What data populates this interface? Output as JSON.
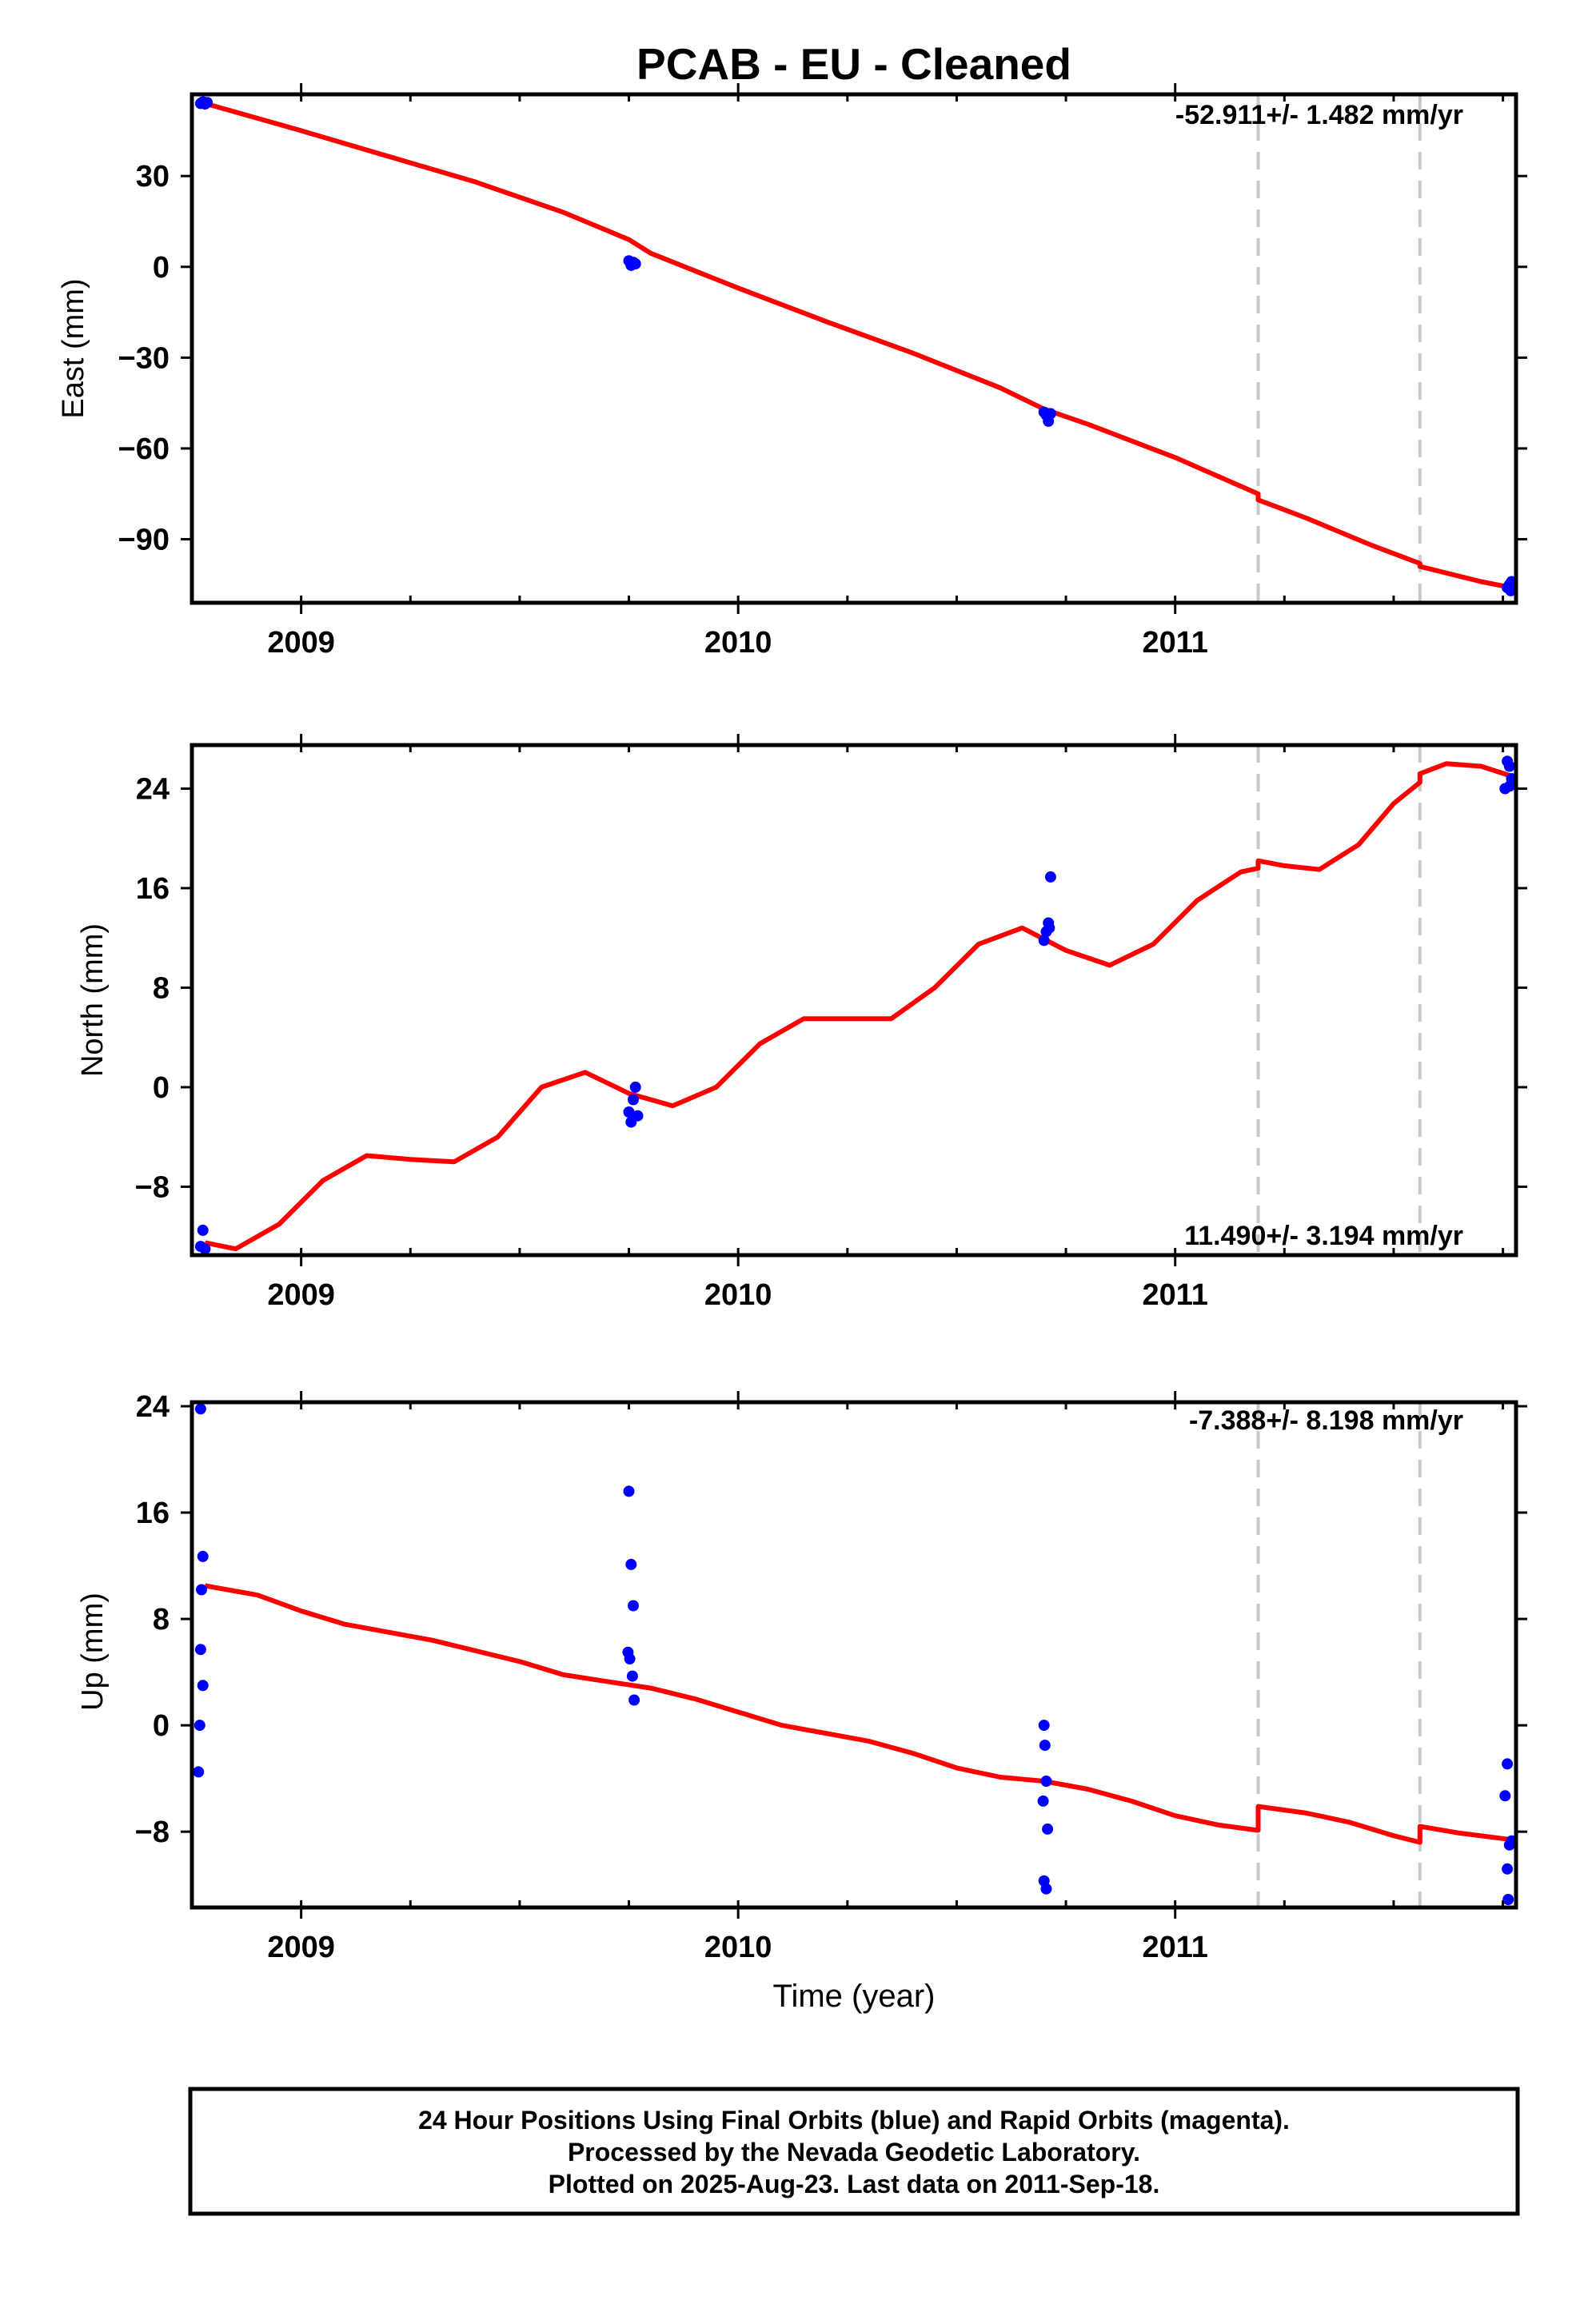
{
  "title": "PCAB  - EU - Cleaned",
  "xlabel": "Time (year)",
  "colors": {
    "final": "#0000ff",
    "model": "#ff0000",
    "offset": "#c8c8c8",
    "frame": "#000000"
  },
  "chart_data": [
    {
      "type": "scatter",
      "name": "east",
      "ylabel": "East (mm)",
      "rate_label": "-52.911+/- 1.482 mm/yr",
      "xlim": [
        2008.75,
        2011.78
      ],
      "ylim": [
        -111,
        57
      ],
      "xticks": [
        2009,
        2010,
        2011
      ],
      "yticks": [
        30,
        0,
        -30,
        -60,
        -90
      ],
      "ytick_labels": [
        "30",
        "0",
        "−30",
        "−60",
        "−90"
      ],
      "offsets": [
        2011.19,
        2011.56
      ],
      "points": [
        [
          2008.77,
          54
        ],
        [
          2008.775,
          54.5
        ],
        [
          2008.78,
          53.8
        ],
        [
          2008.785,
          54.3
        ],
        [
          2009.75,
          2
        ],
        [
          2009.755,
          0.5
        ],
        [
          2009.76,
          1.5
        ],
        [
          2009.765,
          1
        ],
        [
          2010.7,
          -48
        ],
        [
          2010.705,
          -49
        ],
        [
          2010.71,
          -51
        ],
        [
          2010.715,
          -48.5
        ],
        [
          2011.76,
          -106
        ],
        [
          2011.765,
          -105
        ],
        [
          2011.77,
          -104
        ],
        [
          2011.768,
          -107
        ]
      ],
      "model": [
        [
          2008.78,
          54
        ],
        [
          2009.0,
          45
        ],
        [
          2009.2,
          36.5
        ],
        [
          2009.4,
          28
        ],
        [
          2009.6,
          18
        ],
        [
          2009.75,
          9
        ],
        [
          2009.8,
          4.5
        ],
        [
          2010.0,
          -7
        ],
        [
          2010.2,
          -18
        ],
        [
          2010.4,
          -28.5
        ],
        [
          2010.6,
          -40
        ],
        [
          2010.7,
          -47
        ],
        [
          2010.8,
          -52
        ],
        [
          2011.0,
          -63
        ],
        [
          2011.19,
          -75
        ],
        [
          2011.19,
          -77
        ],
        [
          2011.3,
          -83
        ],
        [
          2011.45,
          -92
        ],
        [
          2011.56,
          -98
        ],
        [
          2011.56,
          -99
        ],
        [
          2011.7,
          -104
        ],
        [
          2011.77,
          -106
        ]
      ]
    },
    {
      "type": "scatter",
      "name": "north",
      "ylabel": "North (mm)",
      "rate_label": "11.490+/- 3.194 mm/yr",
      "xlim": [
        2008.75,
        2011.78
      ],
      "ylim": [
        -13.5,
        27.5
      ],
      "xticks": [
        2009,
        2010,
        2011
      ],
      "yticks": [
        24,
        16,
        8,
        0,
        -8
      ],
      "ytick_labels": [
        "24",
        "16",
        "8",
        "0",
        "−8"
      ],
      "offsets": [
        2011.19,
        2011.56
      ],
      "points": [
        [
          2008.77,
          -12.8
        ],
        [
          2008.775,
          -11.5
        ],
        [
          2008.78,
          -13
        ],
        [
          2009.75,
          -2
        ],
        [
          2009.755,
          -2.8
        ],
        [
          2009.76,
          -1
        ],
        [
          2009.765,
          0
        ],
        [
          2009.77,
          -2.3
        ],
        [
          2010.7,
          11.8
        ],
        [
          2010.705,
          12.5
        ],
        [
          2010.71,
          13.2
        ],
        [
          2010.715,
          16.9
        ],
        [
          2010.712,
          12.8
        ],
        [
          2011.76,
          26.2
        ],
        [
          2011.765,
          25.8
        ],
        [
          2011.77,
          24.8
        ],
        [
          2011.765,
          24.2
        ],
        [
          2011.755,
          24
        ]
      ],
      "model": [
        [
          2008.78,
          -12.5
        ],
        [
          2008.85,
          -13
        ],
        [
          2008.95,
          -11
        ],
        [
          2009.05,
          -7.5
        ],
        [
          2009.15,
          -5.5
        ],
        [
          2009.25,
          -5.8
        ],
        [
          2009.35,
          -6
        ],
        [
          2009.45,
          -4
        ],
        [
          2009.55,
          0
        ],
        [
          2009.65,
          1.2
        ],
        [
          2009.75,
          -0.5
        ],
        [
          2009.85,
          -1.5
        ],
        [
          2009.95,
          0
        ],
        [
          2010.05,
          3.5
        ],
        [
          2010.15,
          5.5
        ],
        [
          2010.25,
          5.5
        ],
        [
          2010.35,
          5.5
        ],
        [
          2010.45,
          8
        ],
        [
          2010.55,
          11.5
        ],
        [
          2010.65,
          12.8
        ],
        [
          2010.75,
          11
        ],
        [
          2010.85,
          9.8
        ],
        [
          2010.95,
          11.5
        ],
        [
          2011.05,
          15
        ],
        [
          2011.15,
          17.3
        ],
        [
          2011.19,
          17.6
        ],
        [
          2011.19,
          18.2
        ],
        [
          2011.25,
          17.8
        ],
        [
          2011.33,
          17.5
        ],
        [
          2011.42,
          19.5
        ],
        [
          2011.5,
          22.8
        ],
        [
          2011.56,
          24.5
        ],
        [
          2011.56,
          25.2
        ],
        [
          2011.62,
          26
        ],
        [
          2011.7,
          25.8
        ],
        [
          2011.77,
          25
        ]
      ]
    },
    {
      "type": "scatter",
      "name": "up",
      "ylabel": "Up (mm)",
      "rate_label": "-7.388+/- 8.198 mm/yr",
      "xlim": [
        2008.75,
        2011.78
      ],
      "ylim": [
        -13.7,
        24.3
      ],
      "xticks": [
        2009,
        2010,
        2011
      ],
      "yticks": [
        24,
        16,
        8,
        0,
        -8
      ],
      "ytick_labels": [
        "24",
        "16",
        "8",
        "0",
        "−8"
      ],
      "offsets": [
        2011.19,
        2011.56
      ],
      "points": [
        [
          2008.77,
          23.8
        ],
        [
          2008.775,
          12.7
        ],
        [
          2008.772,
          10.2
        ],
        [
          2008.77,
          5.7
        ],
        [
          2008.775,
          3
        ],
        [
          2008.768,
          0
        ],
        [
          2008.765,
          -3.5
        ],
        [
          2009.75,
          17.6
        ],
        [
          2009.755,
          12.1
        ],
        [
          2009.76,
          9
        ],
        [
          2009.748,
          5.5
        ],
        [
          2009.752,
          5
        ],
        [
          2009.758,
          3.7
        ],
        [
          2009.762,
          1.9
        ],
        [
          2010.7,
          0
        ],
        [
          2010.702,
          -1.5
        ],
        [
          2010.705,
          -4.2
        ],
        [
          2010.698,
          -5.7
        ],
        [
          2010.708,
          -7.8
        ],
        [
          2010.7,
          -11.7
        ],
        [
          2010.705,
          -12.3
        ],
        [
          2011.76,
          -2.9
        ],
        [
          2011.755,
          -5.3
        ],
        [
          2011.77,
          -8.7
        ],
        [
          2011.765,
          -9
        ],
        [
          2011.76,
          -10.8
        ],
        [
          2011.762,
          -13.1
        ]
      ],
      "model": [
        [
          2008.78,
          10.5
        ],
        [
          2008.9,
          9.8
        ],
        [
          2009.0,
          8.6
        ],
        [
          2009.1,
          7.6
        ],
        [
          2009.2,
          7
        ],
        [
          2009.3,
          6.4
        ],
        [
          2009.4,
          5.6
        ],
        [
          2009.5,
          4.8
        ],
        [
          2009.6,
          3.8
        ],
        [
          2009.7,
          3.3
        ],
        [
          2009.8,
          2.8
        ],
        [
          2009.9,
          2
        ],
        [
          2010.0,
          1
        ],
        [
          2010.1,
          0
        ],
        [
          2010.2,
          -0.6
        ],
        [
          2010.3,
          -1.2
        ],
        [
          2010.4,
          -2.1
        ],
        [
          2010.5,
          -3.2
        ],
        [
          2010.6,
          -3.9
        ],
        [
          2010.7,
          -4.2
        ],
        [
          2010.8,
          -4.8
        ],
        [
          2010.9,
          -5.7
        ],
        [
          2011.0,
          -6.8
        ],
        [
          2011.1,
          -7.5
        ],
        [
          2011.19,
          -7.9
        ],
        [
          2011.19,
          -6.1
        ],
        [
          2011.3,
          -6.6
        ],
        [
          2011.4,
          -7.3
        ],
        [
          2011.5,
          -8.3
        ],
        [
          2011.56,
          -8.8
        ],
        [
          2011.56,
          -7.6
        ],
        [
          2011.65,
          -8.1
        ],
        [
          2011.77,
          -8.6
        ]
      ]
    }
  ],
  "footer": {
    "line1": "24 Hour Positions Using Final Orbits (blue) and Rapid Orbits (magenta).",
    "line2": "Processed by the Nevada Geodetic Laboratory.",
    "line3": "Plotted on 2025-Aug-23. Last data on 2011-Sep-18."
  }
}
